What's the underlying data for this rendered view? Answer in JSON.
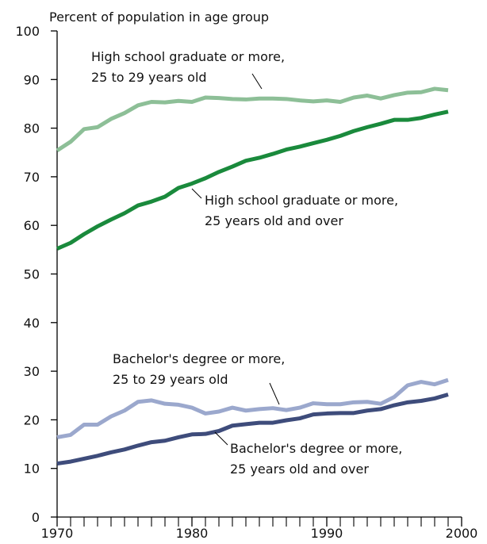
{
  "chart_data": {
    "type": "line",
    "y_axis_label": "Percent of population in age group",
    "x": [
      1970,
      1971,
      1972,
      1973,
      1974,
      1975,
      1976,
      1977,
      1978,
      1979,
      1980,
      1981,
      1982,
      1983,
      1984,
      1985,
      1986,
      1987,
      1988,
      1989,
      1990,
      1991,
      1992,
      1993,
      1994,
      1995,
      1996,
      1997,
      1998,
      1999
    ],
    "xlim": [
      1970,
      2000
    ],
    "xticks": [
      1970,
      1980,
      1990,
      2000
    ],
    "x_minor_ticks": [
      1971,
      1972,
      1973,
      1974,
      1975,
      1976,
      1977,
      1978,
      1979,
      1981,
      1982,
      1983,
      1984,
      1985,
      1986,
      1987,
      1988,
      1989,
      1991,
      1992,
      1993,
      1994,
      1995,
      1996,
      1997,
      1998,
      1999
    ],
    "ylim": [
      0,
      100
    ],
    "yticks": [
      0,
      10,
      20,
      30,
      40,
      50,
      60,
      70,
      80,
      90,
      100
    ],
    "series": [
      {
        "name": [
          "High school graduate or more,",
          "25 to 29 years old"
        ],
        "color": "#8dbf97",
        "values": [
          75.4,
          77.2,
          79.8,
          80.2,
          81.9,
          83.1,
          84.7,
          85.4,
          85.3,
          85.6,
          85.4,
          86.3,
          86.2,
          86.0,
          85.9,
          86.1,
          86.1,
          86.0,
          85.7,
          85.5,
          85.7,
          85.4,
          86.3,
          86.7,
          86.1,
          86.8,
          87.3,
          87.4,
          88.1,
          87.8
        ]
      },
      {
        "name": [
          "High school graduate or more,",
          "25 years old and over"
        ],
        "color": "#1a8a3c",
        "values": [
          55.2,
          56.4,
          58.2,
          59.8,
          61.2,
          62.5,
          64.1,
          64.9,
          65.9,
          67.7,
          68.6,
          69.7,
          71.0,
          72.1,
          73.3,
          73.9,
          74.7,
          75.6,
          76.2,
          76.9,
          77.6,
          78.4,
          79.4,
          80.2,
          80.9,
          81.7,
          81.7,
          82.1,
          82.8,
          83.4
        ]
      },
      {
        "name": [
          "Bachelor's degree or more,",
          "25 to 29 years old"
        ],
        "color": "#9ba8cd",
        "values": [
          16.4,
          16.9,
          19.0,
          19.0,
          20.7,
          21.9,
          23.7,
          24.0,
          23.3,
          23.1,
          22.5,
          21.3,
          21.7,
          22.5,
          21.9,
          22.2,
          22.4,
          22.0,
          22.5,
          23.4,
          23.2,
          23.2,
          23.6,
          23.7,
          23.3,
          24.7,
          27.1,
          27.8,
          27.3,
          28.2
        ]
      },
      {
        "name": [
          "Bachelor's degree or more,",
          "25 years old and over"
        ],
        "color": "#3e4c7b",
        "values": [
          11.0,
          11.4,
          12.0,
          12.6,
          13.3,
          13.9,
          14.7,
          15.4,
          15.7,
          16.4,
          17.0,
          17.1,
          17.7,
          18.8,
          19.1,
          19.4,
          19.4,
          19.9,
          20.3,
          21.1,
          21.3,
          21.4,
          21.4,
          21.9,
          22.2,
          23.0,
          23.6,
          23.9,
          24.4,
          25.2
        ]
      }
    ]
  }
}
